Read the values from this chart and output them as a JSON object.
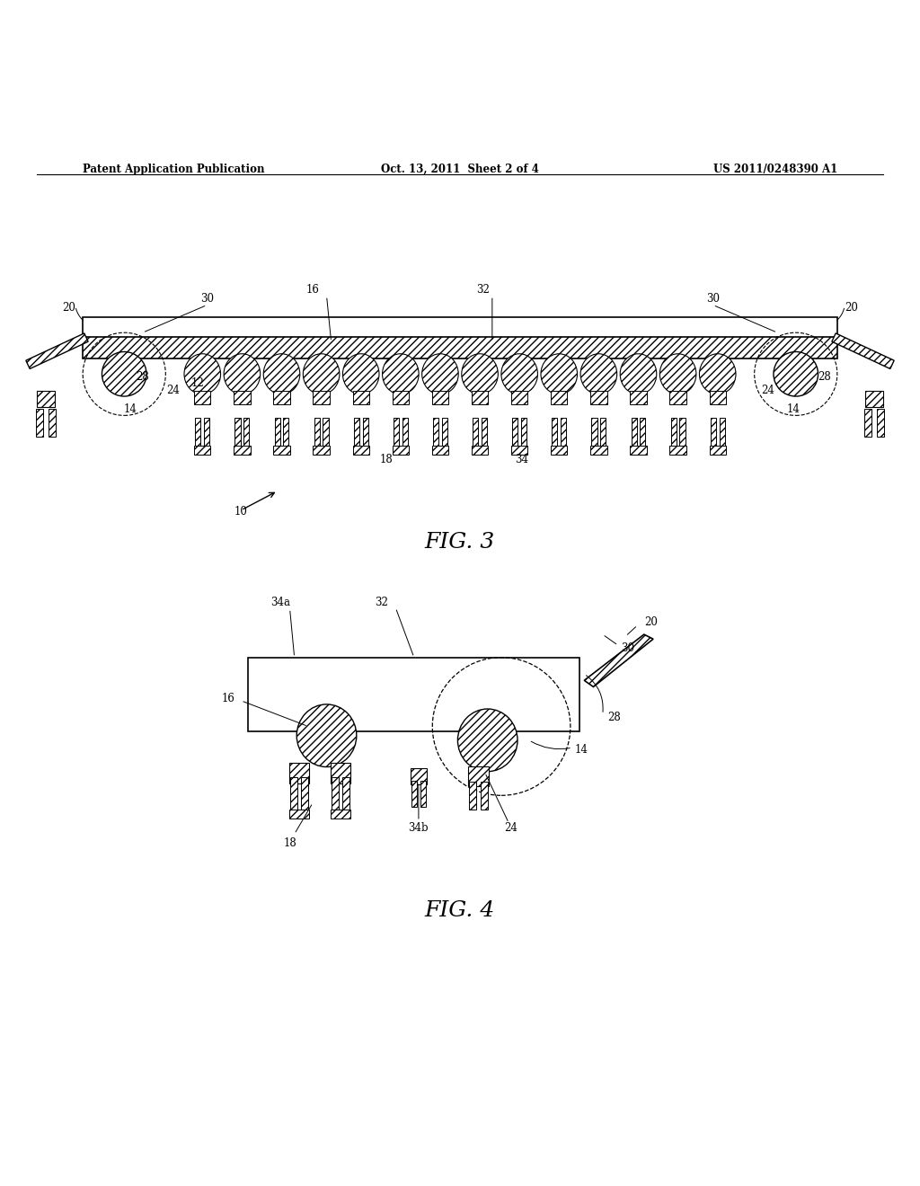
{
  "bg_color": "#ffffff",
  "header_left": "Patent Application Publication",
  "header_center": "Oct. 13, 2011  Sheet 2 of 4",
  "header_right": "US 2011/0248390 A1",
  "fig3_label": "FIG. 3",
  "fig4_label": "FIG. 4"
}
